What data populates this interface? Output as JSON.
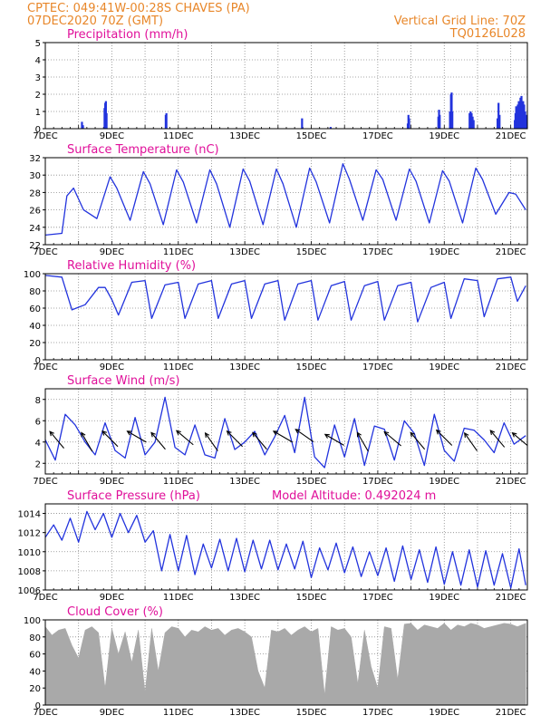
{
  "header": {
    "line1_left": "CPTEC:   049:41W-00:28S   CHAVES (PA)",
    "line2_left": "07DEC2020 70Z (GMT)",
    "line1_right": "Vertical Grid Line: 70Z",
    "line2_right": "TQ0126L028"
  },
  "x_tick_labels": [
    "7DEC",
    "9DEC",
    "11DEC",
    "13DEC",
    "15DEC",
    "17DEC",
    "19DEC",
    "21DEC"
  ],
  "colors": {
    "line": "#2233dd",
    "bar": "#2233dd",
    "cloud": "#a9a9a9",
    "header": "#e8872a",
    "title": "#e0109a"
  },
  "chart_data": [
    {
      "type": "bar",
      "title": "Precipitation (mm/h)",
      "ylim": [
        0,
        5
      ],
      "yticks": [
        0,
        1,
        2,
        3,
        4,
        5
      ],
      "x_unit": "days since 7DEC",
      "series": [
        {
          "x": [
            1.1,
            1.13,
            1.78,
            1.8,
            1.82,
            1.84,
            3.62,
            3.64,
            7.72,
            8.58,
            10.9,
            10.92,
            10.94,
            11.82,
            11.84,
            11.86,
            12.17,
            12.2,
            12.22,
            12.24,
            12.76,
            12.79,
            12.82,
            12.85,
            12.88,
            13.6,
            13.63,
            13.66,
            14.12,
            14.14,
            14.16,
            14.19,
            14.21,
            14.24,
            14.26,
            14.29,
            14.32,
            14.34,
            14.37,
            14.4,
            14.43,
            14.46,
            14.49
          ],
          "values": [
            0.4,
            0.2,
            1.2,
            1.5,
            1.6,
            0.9,
            0.8,
            0.9,
            0.6,
            0.1,
            0.3,
            0.8,
            0.6,
            0.7,
            1.1,
            0.8,
            1.0,
            2.0,
            2.1,
            1.0,
            0.9,
            1.0,
            0.9,
            0.7,
            0.5,
            0.6,
            1.5,
            0.8,
            0.5,
            0.9,
            1.3,
            0.7,
            1.4,
            1.6,
            1.1,
            1.8,
            1.9,
            1.5,
            1.6,
            1.4,
            1.0,
            0.8,
            0.4
          ]
        }
      ]
    },
    {
      "type": "line",
      "title": "Surface Temperature (nC)",
      "ylim": [
        22,
        32
      ],
      "yticks": [
        22,
        24,
        26,
        28,
        30,
        32
      ],
      "series": [
        {
          "x": [
            0,
            0.5,
            0.65,
            0.85,
            1.15,
            1.55,
            1.95,
            2.15,
            2.55,
            2.95,
            3.15,
            3.55,
            3.95,
            4.15,
            4.55,
            4.95,
            5.15,
            5.55,
            5.95,
            6.15,
            6.55,
            6.95,
            7.15,
            7.55,
            7.95,
            8.15,
            8.55,
            8.95,
            9.15,
            9.55,
            9.95,
            10.15,
            10.55,
            10.95,
            11.15,
            11.55,
            11.95,
            12.15,
            12.55,
            12.95,
            13.15,
            13.55,
            13.95,
            14.15,
            14.45
          ],
          "values": [
            23.1,
            23.3,
            27.6,
            28.5,
            26.0,
            25.0,
            29.8,
            28.5,
            24.8,
            30.4,
            29.0,
            24.3,
            30.6,
            29.2,
            24.5,
            30.6,
            29.0,
            24.0,
            30.7,
            29.3,
            24.3,
            30.7,
            29.0,
            24.0,
            30.8,
            29.2,
            24.5,
            31.3,
            29.5,
            24.8,
            30.6,
            29.5,
            24.8,
            30.7,
            29.3,
            24.5,
            30.5,
            29.3,
            24.5,
            30.8,
            29.5,
            25.5,
            28.0,
            27.8,
            26.0
          ]
        }
      ]
    },
    {
      "type": "line",
      "title": "Relative Humidity (%)",
      "ylim": [
        0,
        100
      ],
      "yticks": [
        0,
        20,
        40,
        60,
        80,
        100
      ],
      "series": [
        {
          "x": [
            0,
            0.5,
            0.8,
            1.2,
            1.6,
            1.8,
            2.0,
            2.2,
            2.6,
            3.0,
            3.2,
            3.6,
            4.0,
            4.2,
            4.6,
            5.0,
            5.2,
            5.6,
            6.0,
            6.2,
            6.6,
            7.0,
            7.2,
            7.6,
            8.0,
            8.2,
            8.6,
            9.0,
            9.2,
            9.6,
            10.0,
            10.2,
            10.6,
            11.0,
            11.2,
            11.6,
            12.0,
            12.2,
            12.6,
            13.0,
            13.2,
            13.6,
            14.0,
            14.2,
            14.45
          ],
          "values": [
            98,
            96,
            58,
            64,
            84,
            84,
            70,
            52,
            90,
            92,
            48,
            87,
            90,
            48,
            88,
            92,
            48,
            88,
            92,
            48,
            88,
            92,
            46,
            88,
            92,
            46,
            86,
            91,
            46,
            86,
            91,
            46,
            86,
            90,
            44,
            84,
            90,
            48,
            94,
            92,
            50,
            94,
            96,
            68,
            86
          ]
        }
      ]
    },
    {
      "type": "line",
      "title": "Surface Wind (m/s)",
      "ylim": [
        1,
        9
      ],
      "yticks": [
        2,
        4,
        6,
        8
      ],
      "series": [
        {
          "x": [
            0,
            0.3,
            0.6,
            0.9,
            1.2,
            1.5,
            1.8,
            2.1,
            2.4,
            2.7,
            3.0,
            3.3,
            3.6,
            3.9,
            4.2,
            4.5,
            4.8,
            5.1,
            5.4,
            5.7,
            6.0,
            6.3,
            6.6,
            6.9,
            7.2,
            7.5,
            7.8,
            8.1,
            8.4,
            8.7,
            9.0,
            9.3,
            9.6,
            9.9,
            10.2,
            10.5,
            10.8,
            11.1,
            11.4,
            11.7,
            12.0,
            12.3,
            12.6,
            12.9,
            13.2,
            13.5,
            13.8,
            14.1,
            14.45
          ],
          "values": [
            4.2,
            2.3,
            6.6,
            5.6,
            4.0,
            2.8,
            5.8,
            3.2,
            2.5,
            6.3,
            2.8,
            4.0,
            8.2,
            3.5,
            2.8,
            5.6,
            2.8,
            2.5,
            6.2,
            3.3,
            4.0,
            5.0,
            2.8,
            4.5,
            6.5,
            3.0,
            8.2,
            2.6,
            1.6,
            5.6,
            2.6,
            6.2,
            1.8,
            5.5,
            5.2,
            2.3,
            6.0,
            4.8,
            1.8,
            6.6,
            3.2,
            2.2,
            5.3,
            5.1,
            4.2,
            3.0,
            5.8,
            3.8,
            4.6
          ]
        }
      ],
      "wind_arrows": [
        {
          "x": 0.35,
          "speed": 4.2,
          "dir": 320
        },
        {
          "x": 1.25,
          "speed": 4.0,
          "dir": 330
        },
        {
          "x": 1.95,
          "speed": 4.3,
          "dir": 315
        },
        {
          "x": 2.75,
          "speed": 4.5,
          "dir": 300
        },
        {
          "x": 3.4,
          "speed": 4.1,
          "dir": 320
        },
        {
          "x": 4.2,
          "speed": 4.4,
          "dir": 310
        },
        {
          "x": 5.0,
          "speed": 4.0,
          "dir": 325
        },
        {
          "x": 5.7,
          "speed": 4.3,
          "dir": 315
        },
        {
          "x": 6.45,
          "speed": 4.1,
          "dir": 320
        },
        {
          "x": 7.15,
          "speed": 4.5,
          "dir": 300
        },
        {
          "x": 7.8,
          "speed": 4.6,
          "dir": 305
        },
        {
          "x": 8.7,
          "speed": 4.2,
          "dir": 300
        },
        {
          "x": 9.55,
          "speed": 4.0,
          "dir": 330
        },
        {
          "x": 10.45,
          "speed": 4.3,
          "dir": 310
        },
        {
          "x": 11.2,
          "speed": 4.1,
          "dir": 320
        },
        {
          "x": 12.0,
          "speed": 4.4,
          "dir": 315
        },
        {
          "x": 12.8,
          "speed": 4.0,
          "dir": 325
        },
        {
          "x": 13.6,
          "speed": 4.3,
          "dir": 320
        },
        {
          "x": 14.3,
          "speed": 4.2,
          "dir": 310
        }
      ]
    },
    {
      "type": "line",
      "title": "Surface Pressure (hPa)",
      "subtitle": "Model Altitude: 0.492024 m",
      "ylim": [
        1006,
        1015
      ],
      "yticks": [
        1006,
        1008,
        1010,
        1012,
        1014
      ],
      "series": [
        {
          "x": [
            0,
            0.25,
            0.5,
            0.75,
            1.0,
            1.25,
            1.5,
            1.75,
            2.0,
            2.25,
            2.5,
            2.75,
            3.0,
            3.25,
            3.5,
            3.75,
            4.0,
            4.25,
            4.5,
            4.75,
            5.0,
            5.25,
            5.5,
            5.75,
            6.0,
            6.25,
            6.5,
            6.75,
            7.0,
            7.25,
            7.5,
            7.75,
            8.0,
            8.25,
            8.5,
            8.75,
            9.0,
            9.25,
            9.5,
            9.75,
            10.0,
            10.25,
            10.5,
            10.75,
            11.0,
            11.25,
            11.5,
            11.75,
            12.0,
            12.25,
            12.5,
            12.75,
            13.0,
            13.25,
            13.5,
            13.75,
            14.0,
            14.25,
            14.45
          ],
          "values": [
            1011.5,
            1012.8,
            1011.2,
            1013.5,
            1011.0,
            1014.2,
            1012.3,
            1014.0,
            1011.5,
            1014.0,
            1012.0,
            1013.8,
            1011.0,
            1012.2,
            1008.0,
            1011.8,
            1008.0,
            1011.7,
            1007.6,
            1010.8,
            1008.3,
            1011.3,
            1008.0,
            1011.4,
            1007.9,
            1011.2,
            1008.2,
            1011.2,
            1008.1,
            1010.8,
            1008.2,
            1011.1,
            1007.3,
            1010.4,
            1008.1,
            1010.9,
            1007.8,
            1010.5,
            1007.4,
            1010.0,
            1007.5,
            1010.4,
            1006.9,
            1010.6,
            1007.1,
            1010.2,
            1006.8,
            1010.5,
            1006.6,
            1010.0,
            1006.5,
            1010.2,
            1006.3,
            1010.1,
            1006.5,
            1009.8,
            1006.2,
            1010.3,
            1006.5
          ]
        }
      ]
    },
    {
      "type": "area",
      "title": "Cloud Cover (%)",
      "ylim": [
        0,
        100
      ],
      "yticks": [
        0,
        20,
        40,
        60,
        80,
        100
      ],
      "series": [
        {
          "x": [
            0,
            0.2,
            0.4,
            0.6,
            0.8,
            1.0,
            1.2,
            1.4,
            1.6,
            1.8,
            2.0,
            2.2,
            2.4,
            2.6,
            2.8,
            3.0,
            3.2,
            3.4,
            3.6,
            3.8,
            4.0,
            4.2,
            4.4,
            4.6,
            4.8,
            5.0,
            5.2,
            5.4,
            5.6,
            5.8,
            6.0,
            6.2,
            6.4,
            6.6,
            6.8,
            7.0,
            7.2,
            7.4,
            7.6,
            7.8,
            8.0,
            8.2,
            8.4,
            8.6,
            8.8,
            9.0,
            9.2,
            9.4,
            9.6,
            9.8,
            10.0,
            10.2,
            10.4,
            10.6,
            10.8,
            11.0,
            11.2,
            11.4,
            11.6,
            11.8,
            12.0,
            12.2,
            12.4,
            12.6,
            12.8,
            13.0,
            13.2,
            13.4,
            13.6,
            13.8,
            14.0,
            14.2,
            14.45
          ],
          "values": [
            92,
            82,
            88,
            90,
            70,
            55,
            88,
            92,
            85,
            20,
            90,
            60,
            86,
            50,
            88,
            15,
            90,
            40,
            85,
            92,
            90,
            80,
            88,
            86,
            92,
            88,
            90,
            82,
            88,
            90,
            86,
            80,
            40,
            20,
            88,
            86,
            90,
            82,
            88,
            92,
            86,
            90,
            12,
            92,
            88,
            90,
            80,
            25,
            88,
            45,
            20,
            92,
            90,
            30,
            95,
            96,
            88,
            94,
            92,
            90,
            96,
            88,
            94,
            92,
            96,
            94,
            90,
            92,
            94,
            96,
            95,
            92,
            96
          ]
        }
      ]
    }
  ]
}
